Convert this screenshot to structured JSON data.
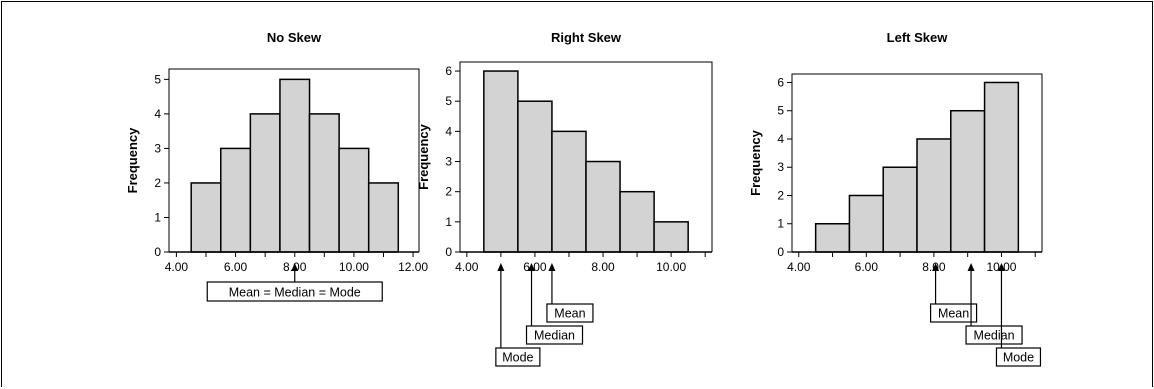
{
  "colors": {
    "bar_fill": "#d3d3d3",
    "bar_stroke": "#000000",
    "background": "#ffffff"
  },
  "chart_data": [
    {
      "type": "bar",
      "title": "No Skew",
      "ylabel": "Frequency",
      "xlabel": "",
      "bin_width": 1,
      "x": [
        5,
        6,
        7,
        8,
        9,
        10,
        11
      ],
      "values": [
        2,
        3,
        4,
        5,
        4,
        3,
        2
      ],
      "xlim": [
        3.75,
        12.2
      ],
      "ylim": [
        0,
        5.3
      ],
      "xticks": [
        4,
        6,
        8,
        10,
        12
      ],
      "xtick_labels": [
        "4.00",
        "6.00",
        "8.00",
        "10.00",
        "12.00"
      ],
      "yticks": [
        0,
        1,
        2,
        3,
        4,
        5
      ],
      "annotations": [
        {
          "label": "Mean = Median = Mode",
          "x": 8
        }
      ]
    },
    {
      "type": "bar",
      "title": "Right Skew",
      "ylabel": "Frequency",
      "xlabel": "",
      "bin_width": 1,
      "x": [
        5,
        6,
        7,
        8,
        9,
        10
      ],
      "values": [
        6,
        5,
        4,
        3,
        2,
        1
      ],
      "xlim": [
        3.8,
        11.2
      ],
      "ylim": [
        0,
        6.3
      ],
      "xticks": [
        4,
        6,
        8,
        10
      ],
      "xtick_labels": [
        "4.00",
        "6.00",
        "8.00",
        "10.00"
      ],
      "yticks": [
        0,
        1,
        2,
        3,
        4,
        5,
        6
      ],
      "annotations": [
        {
          "label": "Mode",
          "x": 5
        },
        {
          "label": "Median",
          "x": 5.9
        },
        {
          "label": "Mean",
          "x": 6.5
        }
      ]
    },
    {
      "type": "bar",
      "title": "Left Skew",
      "ylabel": "Frequency",
      "xlabel": "",
      "bin_width": 1,
      "x": [
        5,
        6,
        7,
        8,
        9,
        10
      ],
      "values": [
        1,
        2,
        3,
        4,
        5,
        6
      ],
      "xlim": [
        3.8,
        11.2
      ],
      "ylim": [
        0,
        6.3
      ],
      "xticks": [
        4,
        6,
        8,
        10
      ],
      "xtick_labels": [
        "4.00",
        "6.00",
        "8.00",
        "10.00"
      ],
      "yticks": [
        0,
        1,
        2,
        3,
        4,
        5,
        6
      ],
      "annotations": [
        {
          "label": "Mean",
          "x": 8.05
        },
        {
          "label": "Median",
          "x": 9.1
        },
        {
          "label": "Mode",
          "x": 10
        }
      ]
    }
  ]
}
